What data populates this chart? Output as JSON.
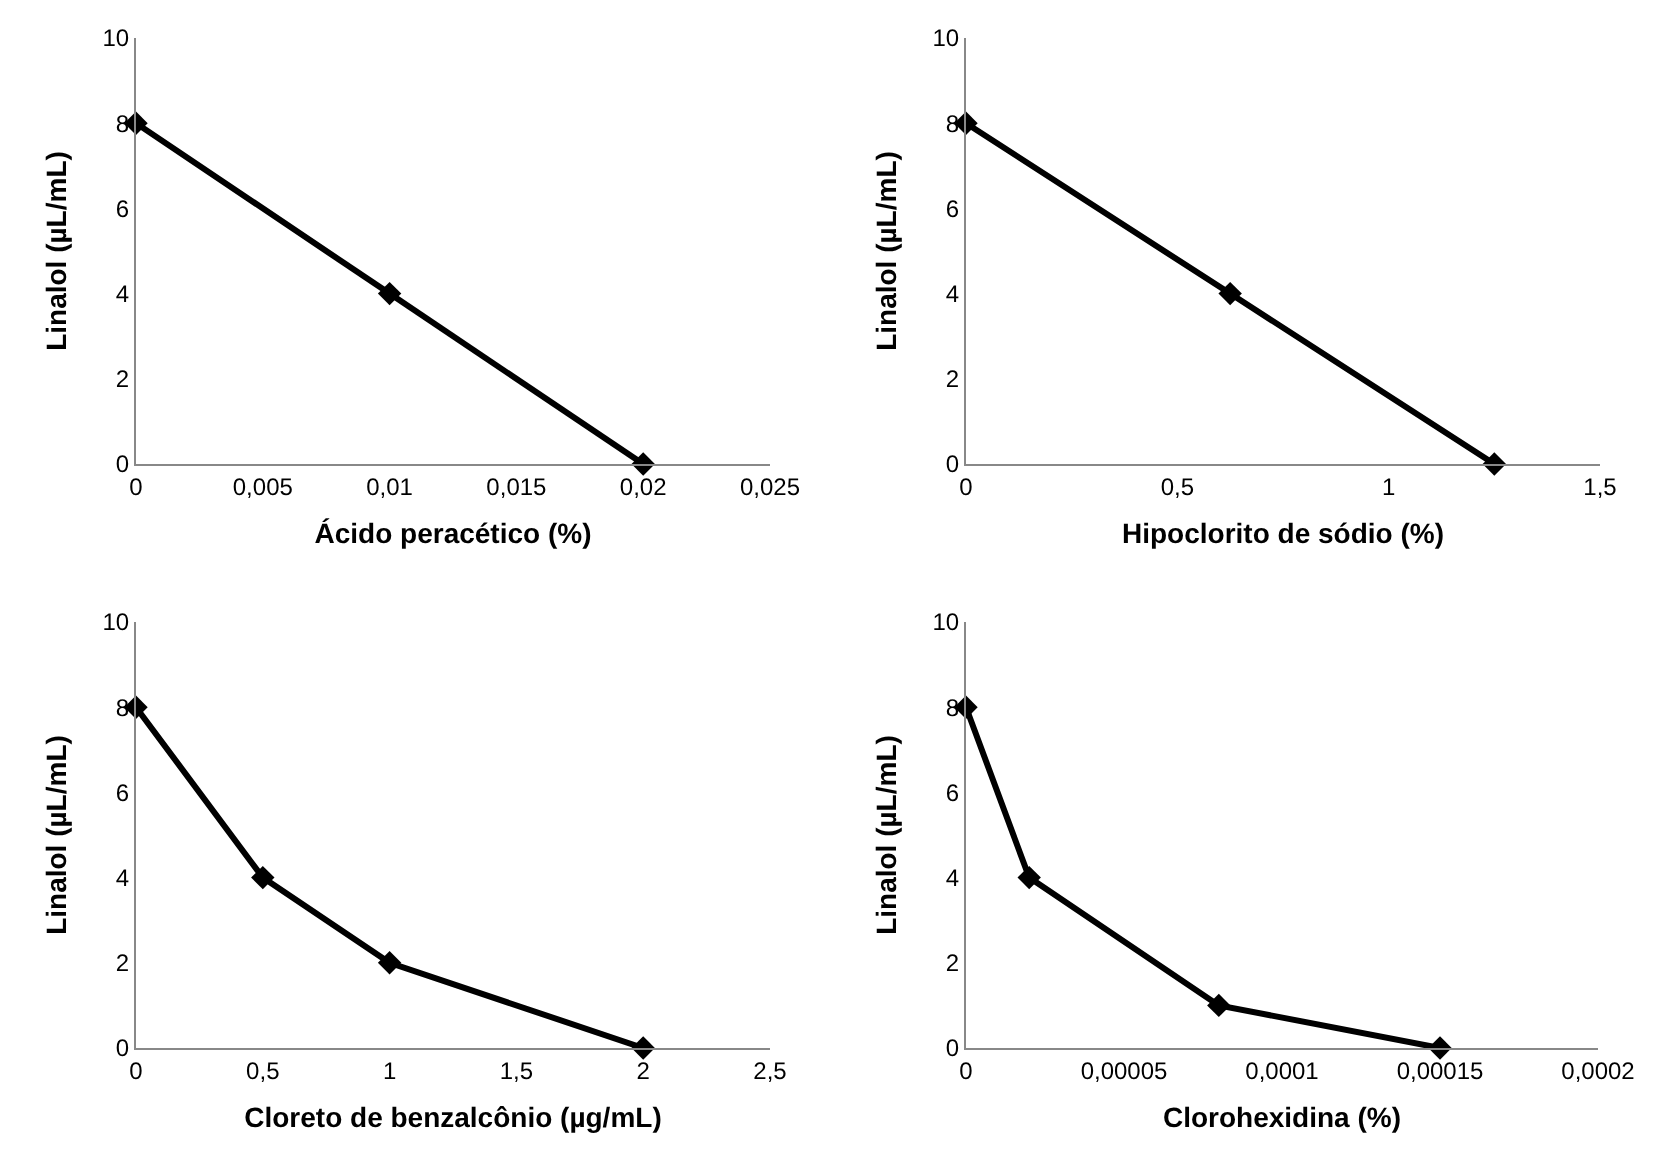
{
  "chart_data": [
    {
      "type": "line",
      "xlabel": "Ácido peracético (%)",
      "ylabel": "Linalol (µL/mL)",
      "x": [
        0,
        0.01,
        0.02
      ],
      "values": [
        8,
        4,
        0
      ],
      "color": "#000000",
      "marker": "diamond",
      "xlim": [
        0,
        0.025
      ],
      "xticks": [
        0,
        {
          "value": 0.005,
          "label": "0,005"
        },
        {
          "value": 0.01,
          "label": "0,01"
        },
        {
          "value": 0.015,
          "label": "0,015"
        },
        {
          "value": 0.02,
          "label": "0,02"
        },
        {
          "value": 0.025,
          "label": "0,025"
        }
      ],
      "ylim": [
        0,
        10
      ],
      "yticks": [
        0,
        2,
        4,
        6,
        8,
        10
      ]
    },
    {
      "type": "line",
      "xlabel": "Hipoclorito de sódio (%)",
      "ylabel": "Linalol (µL/mL)",
      "x": [
        0,
        0.625,
        1.25
      ],
      "values": [
        8,
        4,
        0
      ],
      "color": "#000000",
      "marker": "diamond",
      "xlim": [
        0,
        1.5
      ],
      "xticks": [
        0,
        {
          "value": 0.5,
          "label": "0,5"
        },
        1,
        {
          "value": 1.5,
          "label": "1,5"
        }
      ],
      "ylim": [
        0,
        10
      ],
      "yticks": [
        0,
        2,
        4,
        6,
        8,
        10
      ]
    },
    {
      "type": "line",
      "xlabel": "Cloreto de benzalcônio (µg/mL)",
      "ylabel": "Linalol (µL/mL)",
      "x": [
        0,
        0.5,
        1,
        2
      ],
      "values": [
        8,
        4,
        2,
        0
      ],
      "color": "#000000",
      "marker": "diamond",
      "xlim": [
        0,
        2.5
      ],
      "xticks": [
        0,
        {
          "value": 0.5,
          "label": "0,5"
        },
        1,
        {
          "value": 1.5,
          "label": "1,5"
        },
        2,
        {
          "value": 2.5,
          "label": "2,5"
        }
      ],
      "ylim": [
        0,
        10
      ],
      "yticks": [
        0,
        2,
        4,
        6,
        8,
        10
      ]
    },
    {
      "type": "line",
      "xlabel": "Clorohexidina (%)",
      "ylabel": "Linalol (µL/mL)",
      "x": [
        0,
        2e-05,
        8e-05,
        0.00015
      ],
      "values": [
        8,
        4,
        1,
        0
      ],
      "color": "#000000",
      "marker": "diamond",
      "xlim": [
        0,
        0.0002
      ],
      "xticks": [
        0,
        {
          "value": 5e-05,
          "label": "0,00005"
        },
        {
          "value": 0.0001,
          "label": "0,0001"
        },
        {
          "value": 0.00015,
          "label": "0,00015"
        },
        {
          "value": 0.0002,
          "label": "0,0002"
        }
      ],
      "ylim": [
        0,
        10
      ],
      "yticks": [
        0,
        2,
        4,
        6,
        8,
        10
      ]
    }
  ]
}
